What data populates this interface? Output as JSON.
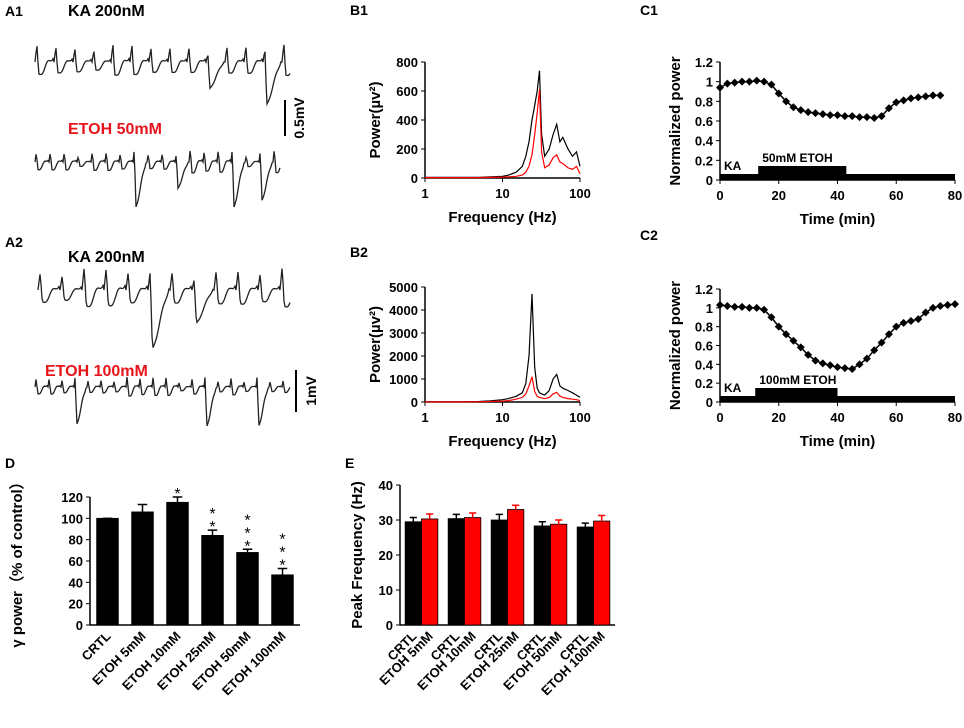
{
  "traces": [
    {
      "panel": "A1",
      "labels": [
        "KA 200nM",
        "ETOH 50mM"
      ],
      "scale": "0.5mV"
    },
    {
      "panel": "A2",
      "labels": [
        "KA 200nM",
        "ETOH 100mM"
      ],
      "scale": "1mV"
    }
  ],
  "chart_data": [
    {
      "panel": "B1",
      "type": "line",
      "log_x": true,
      "x_label": "Frequency (Hz)",
      "y_label": "Power(µv²)",
      "xlim": [
        1,
        100
      ],
      "xticks": [
        1,
        10,
        100
      ],
      "ylim": [
        0,
        800
      ],
      "yticks": [
        0,
        200,
        400,
        600,
        800
      ],
      "x": [
        1,
        2,
        3,
        5,
        7,
        10,
        12,
        15,
        18,
        20,
        22,
        24,
        26,
        28,
        30,
        32,
        35,
        40,
        45,
        50,
        55,
        60,
        70,
        80,
        90,
        100
      ],
      "series": [
        {
          "color": "#000000",
          "values": [
            5,
            5,
            5,
            5,
            8,
            12,
            20,
            40,
            80,
            150,
            250,
            400,
            500,
            600,
            740,
            300,
            150,
            200,
            300,
            370,
            250,
            280,
            200,
            150,
            180,
            80
          ]
        },
        {
          "color": "#ff0000",
          "values": [
            3,
            3,
            3,
            3,
            4,
            6,
            8,
            12,
            20,
            40,
            80,
            160,
            300,
            450,
            610,
            180,
            70,
            90,
            140,
            160,
            110,
            100,
            70,
            60,
            80,
            30
          ]
        }
      ]
    },
    {
      "panel": "B2",
      "type": "line",
      "log_x": true,
      "x_label": "Frequency (Hz)",
      "y_label": "Power(µv²)",
      "xlim": [
        1,
        100
      ],
      "xticks": [
        1,
        10,
        100
      ],
      "ylim": [
        0,
        5000
      ],
      "yticks": [
        0,
        1000,
        2000,
        3000,
        4000,
        5000
      ],
      "x": [
        1,
        2,
        3,
        5,
        7,
        10,
        12,
        15,
        18,
        20,
        22,
        24,
        26,
        28,
        30,
        32,
        35,
        40,
        45,
        50,
        55,
        60,
        70,
        80,
        90,
        100
      ],
      "series": [
        {
          "color": "#000000",
          "values": [
            10,
            10,
            10,
            20,
            50,
            100,
            150,
            250,
            400,
            800,
            2000,
            4700,
            1500,
            600,
            400,
            350,
            300,
            500,
            1000,
            1200,
            700,
            600,
            500,
            400,
            300,
            200
          ]
        },
        {
          "color": "#ff0000",
          "values": [
            5,
            5,
            5,
            10,
            20,
            40,
            60,
            120,
            200,
            350,
            700,
            1100,
            450,
            250,
            200,
            180,
            150,
            200,
            350,
            420,
            260,
            200,
            150,
            120,
            100,
            60
          ]
        }
      ]
    },
    {
      "panel": "C1",
      "type": "line",
      "markers": "diamond",
      "x_label": "Time (min)",
      "y_label": "Normalized power",
      "xlim": [
        0,
        80
      ],
      "xticks": [
        0,
        20,
        40,
        60,
        80
      ],
      "ylim": [
        0,
        1.2
      ],
      "yticks": [
        0,
        0.2,
        0.4,
        0.6,
        0.8,
        1,
        1.2
      ],
      "x": [
        0,
        2.5,
        5,
        7.5,
        10,
        12.5,
        15,
        17.5,
        20,
        22.5,
        25,
        27.5,
        30,
        32.5,
        35,
        37.5,
        40,
        42.5,
        45,
        47.5,
        50,
        52.5,
        55,
        57.5,
        60,
        62.5,
        65,
        67.5,
        70,
        72.5,
        75
      ],
      "series": [
        {
          "color": "#000000",
          "values": [
            0.94,
            0.98,
            0.99,
            1,
            1,
            1.01,
            1.0,
            0.97,
            0.88,
            0.8,
            0.74,
            0.71,
            0.69,
            0.68,
            0.67,
            0.66,
            0.66,
            0.65,
            0.65,
            0.64,
            0.64,
            0.63,
            0.65,
            0.73,
            0.79,
            0.81,
            0.83,
            0.84,
            0.85,
            0.86,
            0.86
          ]
        }
      ],
      "periods": [
        {
          "label": "KA",
          "start": 0,
          "end": 80
        },
        {
          "label": "50mM ETOH",
          "start": 13,
          "end": 43
        }
      ]
    },
    {
      "panel": "C2",
      "type": "line",
      "markers": "diamond",
      "x_label": "Time (min)",
      "y_label": "Normalized power",
      "xlim": [
        0,
        80
      ],
      "xticks": [
        0,
        20,
        40,
        60,
        80
      ],
      "ylim": [
        0,
        1.2
      ],
      "yticks": [
        0,
        0.2,
        0.4,
        0.6,
        0.8,
        1,
        1.2
      ],
      "x": [
        0,
        2.5,
        5,
        7.5,
        10,
        12.5,
        15,
        17.5,
        20,
        22.5,
        25,
        27.5,
        30,
        32.5,
        35,
        37.5,
        40,
        42.5,
        45,
        47.5,
        50,
        52.5,
        55,
        57.5,
        60,
        62.5,
        65,
        67.5,
        70,
        72.5,
        75,
        77.5,
        80
      ],
      "series": [
        {
          "color": "#000000",
          "values": [
            1.03,
            1.02,
            1.01,
            1.01,
            1.0,
            1.0,
            0.98,
            0.9,
            0.8,
            0.72,
            0.65,
            0.58,
            0.5,
            0.44,
            0.41,
            0.39,
            0.37,
            0.36,
            0.35,
            0.4,
            0.46,
            0.55,
            0.63,
            0.72,
            0.8,
            0.84,
            0.86,
            0.88,
            0.95,
            1.0,
            1.02,
            1.03,
            1.04
          ]
        }
      ],
      "periods": [
        {
          "label": "KA",
          "start": 0,
          "end": 80
        },
        {
          "label": "100mM ETOH",
          "start": 12,
          "end": 40
        }
      ]
    },
    {
      "panel": "D",
      "type": "bar",
      "y_label": "γ power（% of control）",
      "ylim": [
        0,
        120
      ],
      "yticks": [
        0,
        20,
        40,
        60,
        80,
        100,
        120
      ],
      "categories": [
        "CRTL",
        "ETOH 5mM",
        "ETOH 10mM",
        "ETOH 25mM",
        "ETOH 50mM",
        "ETOH 100mM"
      ],
      "values": [
        100,
        106,
        115,
        84,
        68,
        47
      ],
      "errors": [
        0,
        7,
        5,
        5,
        3,
        6
      ],
      "value_annotations": [
        null,
        null,
        "*",
        "**",
        "***",
        "***"
      ],
      "color": "#000000"
    },
    {
      "panel": "E",
      "type": "bar",
      "paired": true,
      "y_label": "Peak Frequency (Hz)",
      "ylim": [
        0,
        40
      ],
      "yticks": [
        0,
        10,
        20,
        30,
        40
      ],
      "categories": [
        "CRTL",
        "ETOH 5mM",
        "CRTL",
        "ETOH 10mM",
        "CRTL",
        "ETOH 25mM",
        "CRTL",
        "ETOH 50mM",
        "CRTL",
        "ETOH 100mM"
      ],
      "values": [
        29.5,
        30.3,
        30.4,
        30.7,
        30,
        33,
        28.3,
        28.8,
        28,
        29.7
      ],
      "errors": [
        1.2,
        1.4,
        1.2,
        1.3,
        1.6,
        1.2,
        1.2,
        1.2,
        1.1,
        1.6
      ],
      "colors": [
        "#000000",
        "#ff0000",
        "#000000",
        "#ff0000",
        "#000000",
        "#ff0000",
        "#000000",
        "#ff0000",
        "#000000",
        "#ff0000"
      ]
    }
  ]
}
